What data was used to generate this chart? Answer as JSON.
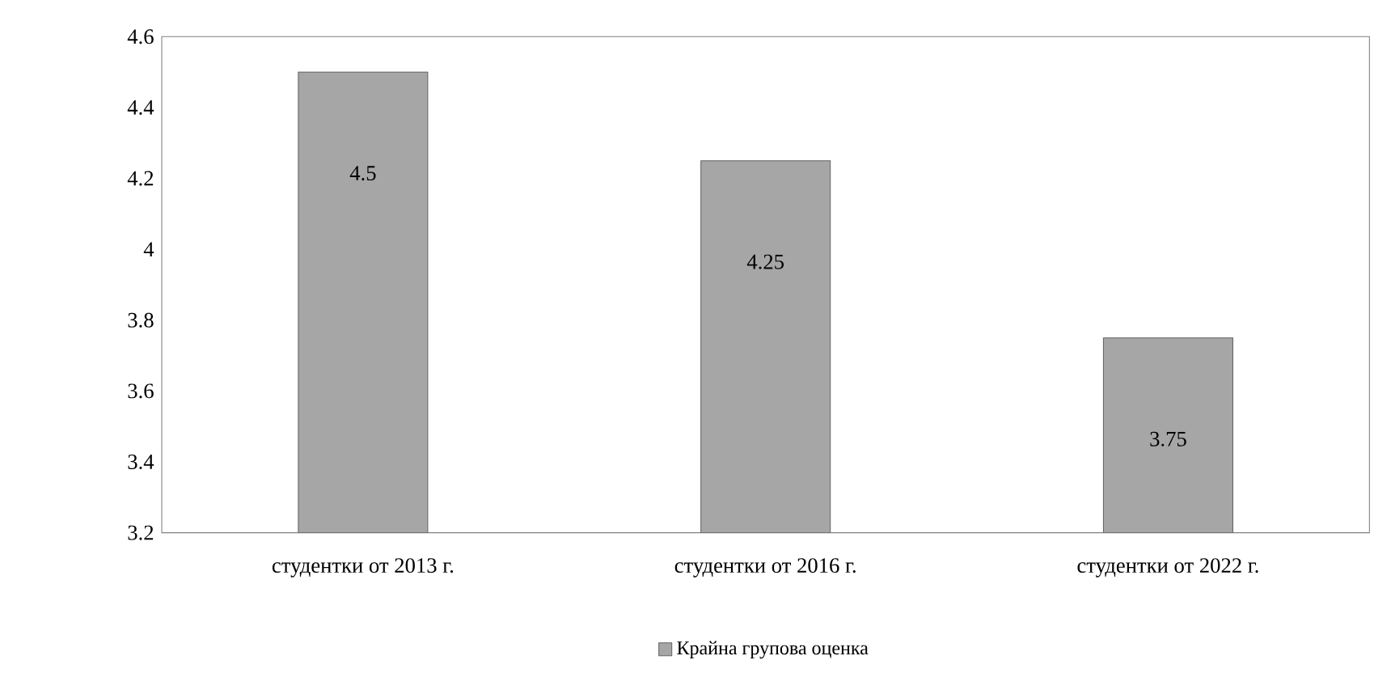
{
  "chart_data": {
    "type": "bar",
    "categories": [
      "студентки от 2013 г.",
      "студентки от 2016 г.",
      "студентки от 2022 г."
    ],
    "series": [
      {
        "name": "Крайна групова оценка",
        "color": "#a6a6a6",
        "values": [
          4.5,
          4.25,
          3.75
        ]
      }
    ],
    "ylim": [
      3.2,
      4.6
    ],
    "yticks": [
      3.2,
      3.4,
      3.6,
      3.8,
      4,
      4.2,
      4.4,
      4.6
    ],
    "data_labels": true,
    "legend": "bottom"
  }
}
